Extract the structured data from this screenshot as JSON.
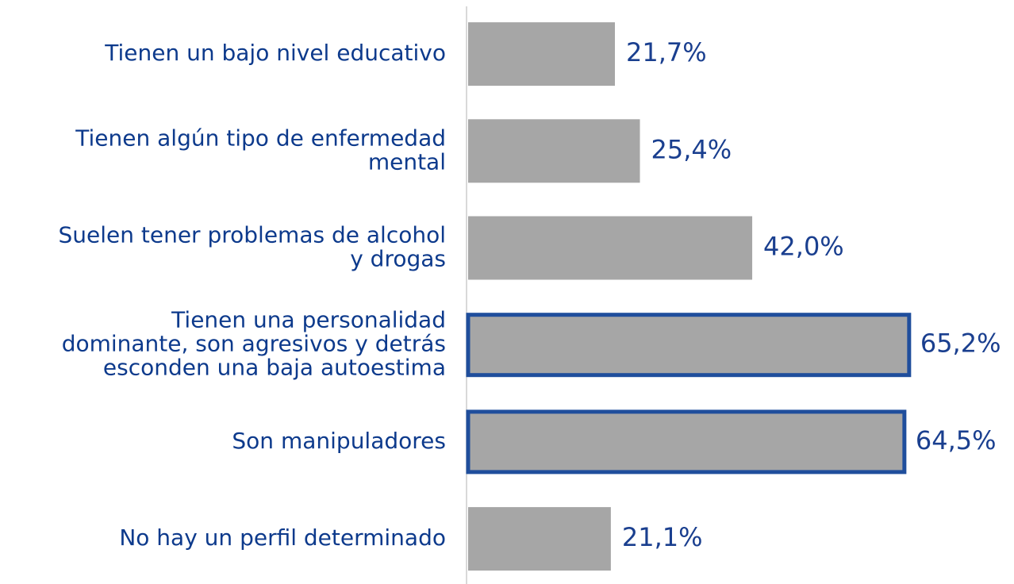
{
  "chart_data": {
    "type": "hbar",
    "categories": [
      [
        "Tienen un bajo nivel educativo"
      ],
      [
        "Tienen algún tipo de enfermedad",
        "mental"
      ],
      [
        "Suelen tener problemas de alcohol",
        "y drogas"
      ],
      [
        "Tienen una personalidad",
        "dominante, son agresivos y detrás",
        "esconden una baja autoestima"
      ],
      [
        "Son manipuladores"
      ],
      [
        "No hay un perfil determinado"
      ]
    ],
    "values": [
      21.7,
      25.4,
      42.0,
      65.2,
      64.5,
      21.1
    ],
    "value_labels": [
      "21,7%",
      "25,4%",
      "42,0%",
      "65,2%",
      "64,5%",
      "21,1%"
    ],
    "color": "#a6a6a6",
    "edge_colors": [
      null,
      null,
      null,
      "#1f4e9c",
      "#1f4e9c",
      null
    ],
    "xlim": [
      0,
      80
    ]
  }
}
